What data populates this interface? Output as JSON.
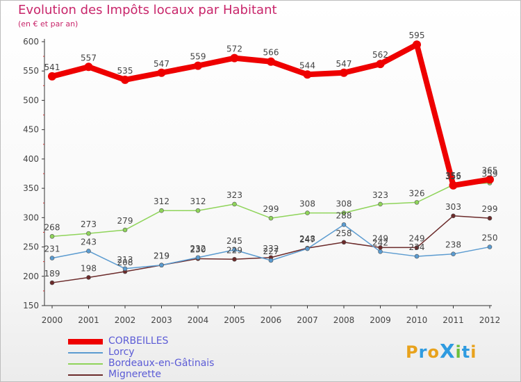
{
  "title": "Evolution des Impôts locaux par Habitant",
  "subtitle": "(en € et par an)",
  "logo": {
    "text": "ProXiti",
    "letters": [
      "P",
      "r",
      "o",
      "X",
      "i",
      "t",
      "i"
    ],
    "colors": [
      "#e8a21c",
      "#2f9be0",
      "#e8a21c",
      "#2f9be0",
      "#6cbf3a",
      "#2f9be0",
      "#e8a21c"
    ]
  },
  "chart_data": {
    "type": "line",
    "title": "Evolution des Impôts locaux par Habitant",
    "subtitle": "(en € et par an)",
    "x": [
      "2000",
      "2001",
      "2002",
      "2003",
      "2004",
      "2005",
      "2006",
      "2007",
      "2008",
      "2009",
      "2010",
      "2011",
      "2012"
    ],
    "yticks": [
      "150",
      "200",
      "250",
      "300",
      "350",
      "400",
      "450",
      "500",
      "550",
      "600"
    ],
    "ylim": [
      150,
      600
    ],
    "grid": false,
    "legend": "bottom-left",
    "series": [
      {
        "name": "CORBEILLES",
        "color": "#ee0000",
        "values": [
          541,
          557,
          535,
          547,
          559,
          572,
          566,
          544,
          547,
          562,
          595,
          355,
          365
        ]
      },
      {
        "name": "Lorcy",
        "color": "#5b9bd0",
        "values": [
          231,
          243,
          213,
          219,
          232,
          245,
          227,
          247,
          288,
          242,
          234,
          238,
          250
        ]
      },
      {
        "name": "Bordeaux-en-Gâtinais",
        "color": "#8fd45a",
        "values": [
          268,
          273,
          279,
          312,
          312,
          323,
          299,
          308,
          308,
          323,
          326,
          356,
          359
        ]
      },
      {
        "name": "Mignerette",
        "color": "#6b2a2a",
        "values": [
          189,
          198,
          208,
          219,
          230,
          229,
          232,
          248,
          258,
          249,
          249,
          303,
          299
        ]
      }
    ],
    "data_labels": [
      [
        "541",
        "557",
        "535",
        "547",
        "559",
        "572",
        "566",
        "544",
        "547",
        "562",
        "595",
        "355",
        "365"
      ],
      [
        "231",
        "243",
        "213",
        "219",
        "232",
        "245",
        "227",
        "247",
        "288",
        "242",
        "234",
        "238",
        "250"
      ],
      [
        "268",
        "273",
        "279",
        "312",
        "312",
        "323",
        "299",
        "308",
        "308",
        "323",
        "326",
        "356",
        "359"
      ],
      [
        "189",
        "198",
        "208",
        "219",
        "230",
        "229",
        "232",
        "248",
        "258",
        "249",
        "249",
        "303",
        "299"
      ]
    ]
  }
}
